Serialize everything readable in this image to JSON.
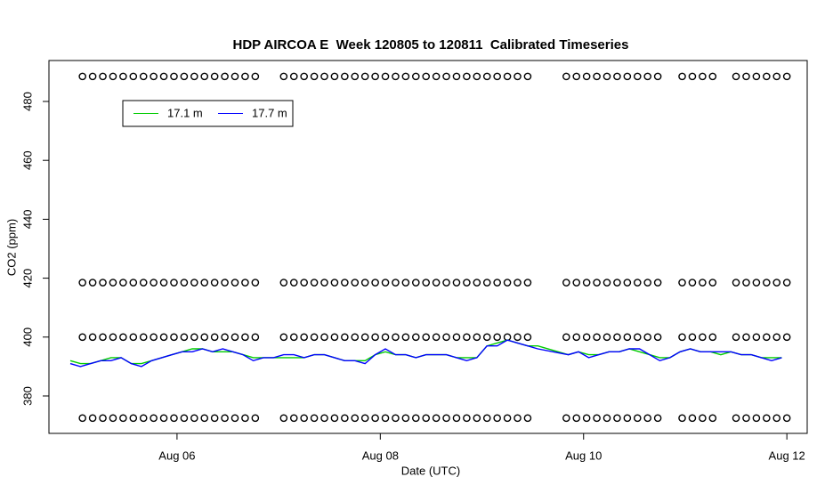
{
  "chart_data": {
    "type": "line",
    "title": "HDP AIRCOA E  Week 120805 to 120811  Calibrated Timeseries",
    "x_label": "Date (UTC)",
    "y_label": "CO2 (ppm)",
    "xlim": [
      4.74,
      12.2
    ],
    "xticks": [
      {
        "value": 6,
        "label": "Aug 06"
      },
      {
        "value": 8,
        "label": "Aug 08"
      },
      {
        "value": 10,
        "label": "Aug 10"
      },
      {
        "value": 12,
        "label": "Aug 12"
      }
    ],
    "ylim": [
      367.3,
      493.9
    ],
    "yticks": [
      380,
      400,
      420,
      440,
      460,
      480
    ],
    "legend": "topleft",
    "x": [
      4.95,
      5.05,
      5.15,
      5.25,
      5.35,
      5.45,
      5.55,
      5.65,
      5.75,
      5.85,
      5.95,
      6.05,
      6.15,
      6.25,
      6.35,
      6.45,
      6.55,
      6.65,
      6.75,
      6.85,
      6.95,
      7.05,
      7.15,
      7.25,
      7.35,
      7.45,
      7.55,
      7.65,
      7.75,
      7.85,
      7.95,
      8.05,
      8.15,
      8.25,
      8.35,
      8.45,
      8.55,
      8.65,
      8.75,
      8.85,
      8.95,
      9.05,
      9.15,
      9.25,
      9.35,
      9.45,
      9.55,
      9.85,
      9.95,
      10.05,
      10.15,
      10.25,
      10.35,
      10.45,
      10.55,
      10.65,
      10.75,
      10.85,
      10.95,
      11.05,
      11.15,
      11.25,
      11.35,
      11.45,
      11.55,
      11.65,
      11.75,
      11.85,
      11.95
    ],
    "series": [
      {
        "name": "17.1 m",
        "color": "#00cc00",
        "values": [
          392,
          391,
          391,
          392,
          393,
          393,
          391,
          391,
          392,
          393,
          394,
          395,
          396,
          396,
          395,
          395,
          395,
          394,
          393,
          393,
          393,
          393,
          393,
          393,
          394,
          394,
          393,
          392,
          392,
          392,
          394,
          395,
          394,
          394,
          393,
          394,
          394,
          394,
          393,
          393,
          393,
          397,
          398,
          399,
          398,
          397,
          397,
          394,
          395,
          394,
          394,
          395,
          395,
          396,
          395,
          394,
          393,
          393,
          395,
          396,
          395,
          395,
          394,
          395,
          394,
          394,
          393,
          393,
          393
        ]
      },
      {
        "name": "17.7 m",
        "color": "#0000ff",
        "values": [
          391,
          390,
          391,
          392,
          392,
          393,
          391,
          390,
          392,
          393,
          394,
          395,
          395,
          396,
          395,
          396,
          395,
          394,
          392,
          393,
          393,
          394,
          394,
          393,
          394,
          394,
          393,
          392,
          392,
          391,
          394,
          396,
          394,
          394,
          393,
          394,
          394,
          394,
          393,
          392,
          393,
          397,
          397,
          399,
          398,
          397,
          396,
          394,
          395,
          393,
          394,
          395,
          395,
          396,
          396,
          394,
          392,
          393,
          395,
          396,
          395,
          395,
          395,
          395,
          394,
          394,
          393,
          392,
          393
        ]
      }
    ],
    "calibration_points": {
      "levels": [
        488.5,
        418.5,
        400,
        372.5
      ],
      "x": [
        5.07,
        5.17,
        5.27,
        5.37,
        5.47,
        5.57,
        5.67,
        5.77,
        5.87,
        5.97,
        6.07,
        6.17,
        6.27,
        6.37,
        6.47,
        6.57,
        6.67,
        6.77,
        7.05,
        7.15,
        7.25,
        7.35,
        7.45,
        7.55,
        7.65,
        7.75,
        7.85,
        7.95,
        8.05,
        8.15,
        8.25,
        8.35,
        8.45,
        8.55,
        8.65,
        8.75,
        8.85,
        8.95,
        9.05,
        9.15,
        9.25,
        9.35,
        9.45,
        9.83,
        9.93,
        10.03,
        10.13,
        10.23,
        10.33,
        10.43,
        10.53,
        10.63,
        10.73,
        10.97,
        11.07,
        11.17,
        11.27,
        11.5,
        11.6,
        11.7,
        11.8,
        11.9,
        12.0
      ]
    }
  }
}
